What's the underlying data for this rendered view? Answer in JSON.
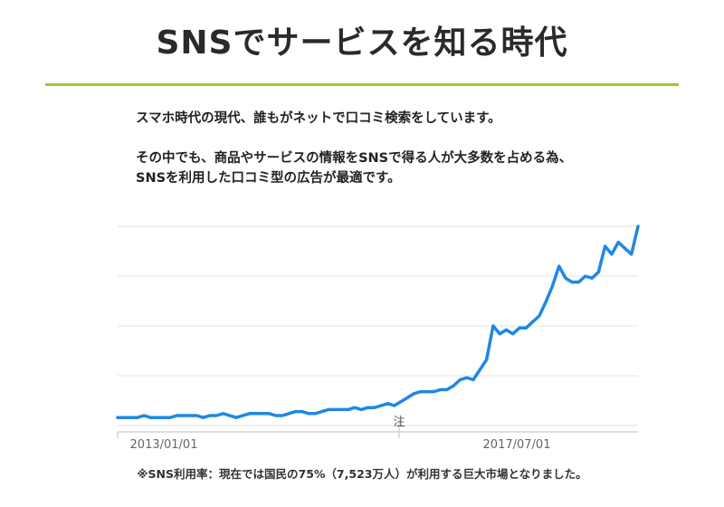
{
  "header": {
    "title": "SNSでサービスを知る時代"
  },
  "intro": {
    "line1": "スマホ時代の現代、誰もがネットで口コミ検索をしています。",
    "line2": "その中でも、商品やサービスの情報をSNSで得る人が大多数を占める為、",
    "line3": "SNSを利用した口コミ型の広告が最適です。"
  },
  "footnote": "※SNS利用率：現在では国民の75%（7,523万人）が利用する巨大市場となりました。",
  "colors": {
    "accent_rule": "#9dc92f",
    "line": "#1e88e5",
    "grid": "#e3e3e3"
  },
  "chart_data": {
    "type": "line",
    "x_tick_labels": [
      "2013/01/01",
      "2017/07/01"
    ],
    "annotation": "注",
    "grid": true,
    "ylim": [
      0,
      100
    ],
    "series": [
      {
        "values": [
          4,
          4,
          4,
          4,
          5,
          4,
          4,
          4,
          4,
          5,
          5,
          5,
          5,
          4,
          5,
          5,
          6,
          5,
          4,
          5,
          6,
          6,
          6,
          6,
          5,
          5,
          6,
          7,
          7,
          6,
          6,
          7,
          8,
          8,
          8,
          8,
          9,
          8,
          9,
          9,
          10,
          11,
          10,
          12,
          14,
          16,
          17,
          17,
          17,
          18,
          18,
          20,
          23,
          24,
          23,
          28,
          33,
          50,
          46,
          48,
          46,
          49,
          49,
          52,
          55,
          62,
          70,
          80,
          74,
          72,
          72,
          75,
          74,
          77,
          90,
          86,
          92,
          89,
          86,
          100
        ]
      }
    ]
  }
}
